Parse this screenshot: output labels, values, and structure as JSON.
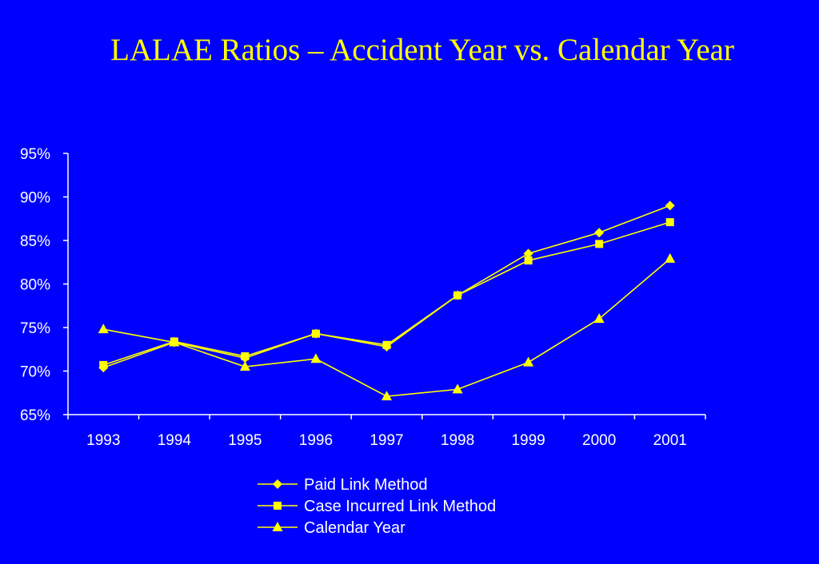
{
  "chart_data": {
    "type": "line",
    "title": "LALAE Ratios – Accident Year vs. Calendar Year",
    "xlabel": "",
    "ylabel": "",
    "categories": [
      "1993",
      "1994",
      "1995",
      "1996",
      "1997",
      "1998",
      "1999",
      "2000",
      "2001"
    ],
    "ylim": [
      65,
      95
    ],
    "y_ticks": [
      65,
      70,
      75,
      80,
      85,
      90,
      95
    ],
    "y_tick_labels": [
      "65%",
      "70%",
      "75%",
      "80%",
      "85%",
      "90%",
      "95%"
    ],
    "grid": false,
    "legend_position": "bottom-center",
    "series": [
      {
        "name": "Paid Link Method",
        "marker": "diamond",
        "values": [
          70.4,
          73.3,
          71.5,
          74.3,
          72.8,
          78.7,
          83.5,
          85.9,
          89.0
        ]
      },
      {
        "name": "Case Incurred Link Method",
        "marker": "square",
        "values": [
          70.7,
          73.4,
          71.7,
          74.3,
          73.0,
          78.7,
          82.7,
          84.6,
          87.1
        ]
      },
      {
        "name": "Calendar Year",
        "marker": "triangle",
        "values": [
          74.8,
          73.3,
          70.5,
          71.4,
          67.1,
          67.9,
          71.0,
          76.0,
          82.9
        ]
      }
    ],
    "colors": {
      "background": "#0000FF",
      "title": "#FFFF00",
      "series": "#FFFF00",
      "axis": "#FFFFFF",
      "text": "#FFFFFF"
    }
  }
}
